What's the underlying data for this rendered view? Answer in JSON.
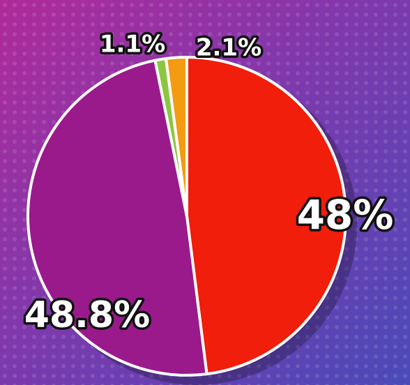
{
  "chart_data": {
    "type": "pie",
    "values": [
      48,
      48.8,
      1.1,
      2.1
    ],
    "value_labels": [
      "48%",
      "48.8%",
      "1.1%",
      "2.1%"
    ],
    "colors": [
      "#f01e0a",
      "#9a1a8c",
      "#8cc63f",
      "#f39c12"
    ]
  }
}
